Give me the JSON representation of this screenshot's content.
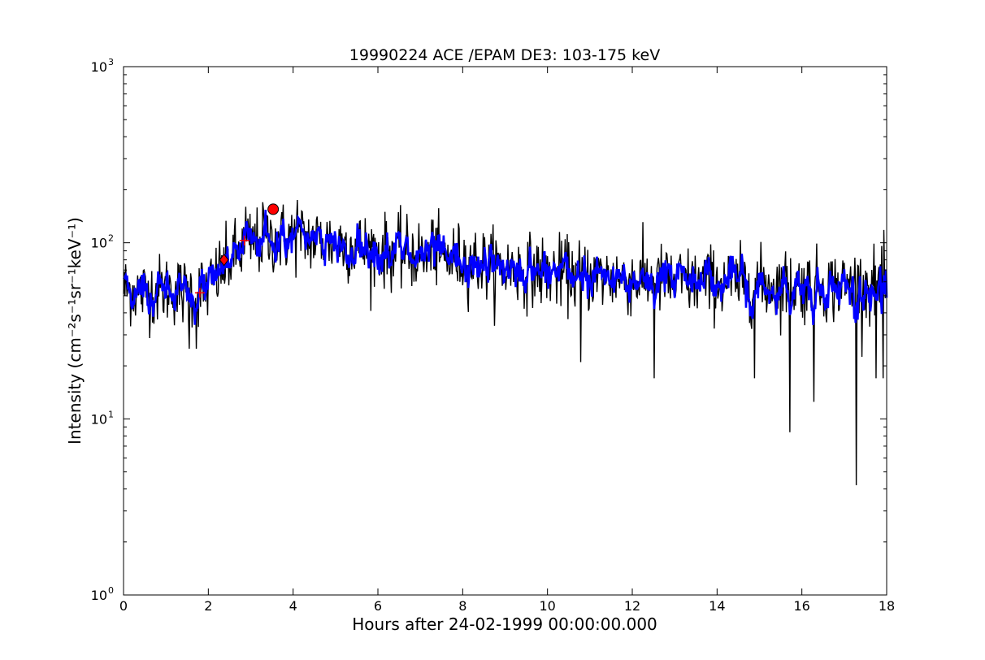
{
  "chart_data": {
    "type": "line",
    "title": "19990224 ACE /EPAM DE3: 103-175 keV",
    "xlabel": "Hours after 24-02-1999 00:00:00.000",
    "ylabel": "Intensity (cm⁻²s⁻¹sr⁻¹keV⁻¹)",
    "xlim": [
      0,
      18
    ],
    "ylim": [
      1,
      1000
    ],
    "yscale": "log",
    "grid": false,
    "legend": "none",
    "x_ticks": [
      0,
      2,
      4,
      6,
      8,
      10,
      12,
      14,
      16,
      18
    ],
    "x_tick_labels": [
      "0",
      "2",
      "4",
      "6",
      "8",
      "10",
      "12",
      "14",
      "16",
      "18"
    ],
    "y_ticks": [
      1,
      10,
      100,
      1000
    ],
    "y_tick_labels": [
      {
        "base": "10",
        "exp": "0"
      },
      {
        "base": "10",
        "exp": "1"
      },
      {
        "base": "10",
        "exp": "2"
      },
      {
        "base": "10",
        "exp": "3"
      }
    ],
    "series": [
      {
        "color": "#000000",
        "style": "line",
        "baseline": {
          "x": [
            0,
            0.5,
            1.0,
            1.5,
            2.0,
            2.3,
            2.7,
            3.0,
            3.5,
            4.0,
            4.5,
            5.0,
            5.5,
            6.0,
            7.0,
            8.0,
            9.0,
            10.0,
            11.0,
            12.0,
            13.0,
            14.0,
            15.0,
            16.0,
            17.0,
            18.0
          ],
          "y": [
            55,
            52,
            55,
            52,
            55,
            70,
            88,
            100,
            105,
            108,
            105,
            100,
            95,
            90,
            85,
            80,
            72,
            68,
            65,
            62,
            60,
            60,
            58,
            57,
            57,
            57
          ]
        },
        "noise_amplitude": 0.42,
        "dips": [
          {
            "x": 10.78,
            "y": 21
          },
          {
            "x": 12.52,
            "y": 17
          },
          {
            "x": 14.88,
            "y": 17
          },
          {
            "x": 15.72,
            "y": 8.4
          },
          {
            "x": 16.28,
            "y": 12.5
          },
          {
            "x": 17.28,
            "y": 4.2
          },
          {
            "x": 17.75,
            "y": 17
          },
          {
            "x": 17.92,
            "y": 17
          },
          {
            "x": 1.55,
            "y": 25
          },
          {
            "x": 1.72,
            "y": 25
          }
        ],
        "peaks": [
          {
            "x": 4.1,
            "y": 175
          },
          {
            "x": 3.3,
            "y": 155
          },
          {
            "x": 2.88,
            "y": 160
          },
          {
            "x": 7.3,
            "y": 135
          }
        ]
      },
      {
        "color": "#0000ff",
        "style": "line",
        "smoothing_window": 7
      }
    ],
    "markers": [
      {
        "shape": "plus",
        "x": 1.8,
        "y": 52,
        "color": "#ff0000"
      },
      {
        "shape": "diamond",
        "x": 2.37,
        "y": 80,
        "color": "#ff0000"
      },
      {
        "shape": "plus",
        "x": 2.85,
        "y": 103,
        "color": "#ff0000"
      },
      {
        "shape": "circle",
        "x": 3.53,
        "y": 155,
        "color": "#ff0000"
      }
    ]
  }
}
